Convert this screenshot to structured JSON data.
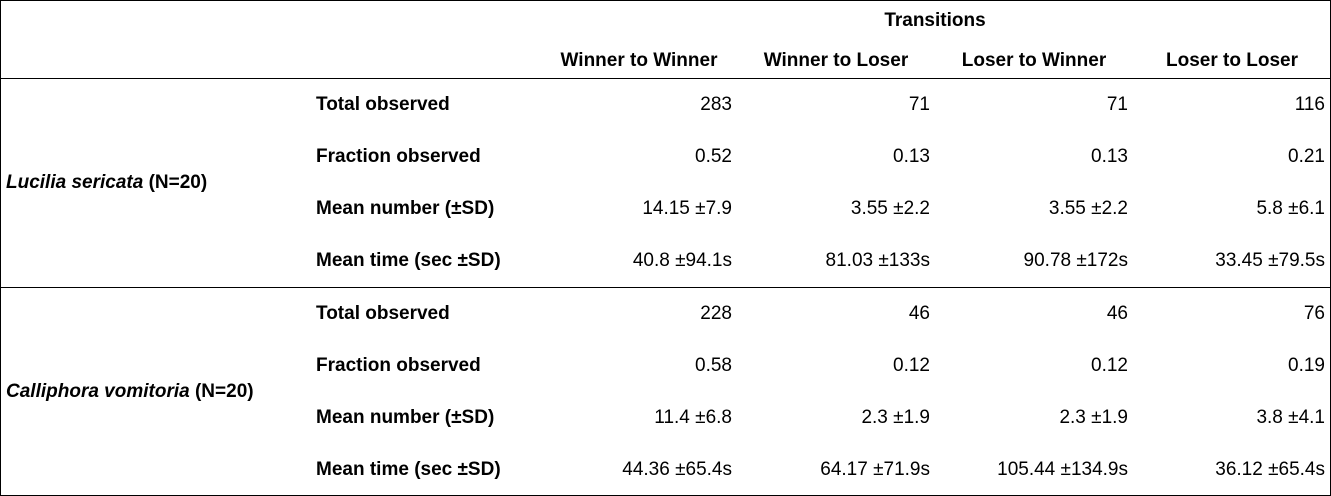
{
  "header": {
    "group_label": "Transitions",
    "columns": [
      "Winner to Winner",
      "Winner to Loser",
      "Loser to Winner",
      "Loser to Loser"
    ]
  },
  "groups": [
    {
      "species": "Lucilia sericata",
      "n_label": "(N=20)",
      "rows": [
        {
          "label": "Total observed",
          "values": [
            "283",
            "71",
            "71",
            "116"
          ]
        },
        {
          "label": "Fraction observed",
          "values": [
            "0.52",
            "0.13",
            "0.13",
            "0.21"
          ]
        },
        {
          "label": "Mean number (±SD)",
          "values": [
            "14.15 ±7.9",
            "3.55 ±2.2",
            "3.55 ±2.2",
            "5.8 ±6.1"
          ]
        },
        {
          "label": "Mean time (sec ±SD)",
          "values": [
            "40.8 ±94.1s",
            "81.03 ±133s",
            "90.78 ±172s",
            "33.45 ±79.5s"
          ]
        }
      ]
    },
    {
      "species": "Calliphora vomitoria",
      "n_label": "(N=20)",
      "rows": [
        {
          "label": "Total observed",
          "values": [
            "228",
            "46",
            "46",
            "76"
          ]
        },
        {
          "label": "Fraction observed",
          "values": [
            "0.58",
            "0.12",
            "0.12",
            "0.19"
          ]
        },
        {
          "label": "Mean number (±SD)",
          "values": [
            "11.4 ±6.8",
            "2.3 ±1.9",
            "2.3 ±1.9",
            "3.8 ±4.1"
          ]
        },
        {
          "label": "Mean time (sec ±SD)",
          "values": [
            "44.36 ±65.4s",
            "64.17 ±71.9s",
            "105.44 ±134.9s",
            "36.12 ±65.4s"
          ]
        }
      ]
    }
  ]
}
